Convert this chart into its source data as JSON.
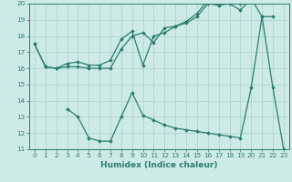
{
  "line1_x": [
    0,
    1,
    2,
    3,
    4,
    5,
    6,
    7,
    8,
    9,
    10,
    11,
    12,
    13,
    14,
    15,
    16,
    17,
    18,
    19,
    20,
    21,
    22
  ],
  "line1_y": [
    17.5,
    16.1,
    16.0,
    16.1,
    16.1,
    16.0,
    16.0,
    16.0,
    17.2,
    18.0,
    18.2,
    17.6,
    18.5,
    18.6,
    18.8,
    19.2,
    20.0,
    19.9,
    20.0,
    19.6,
    20.3,
    19.2,
    19.2
  ],
  "line2_x": [
    0,
    1,
    2,
    3,
    4,
    5,
    6,
    7,
    8,
    9,
    10,
    11,
    12,
    13,
    14,
    15,
    16,
    17,
    18,
    19,
    20
  ],
  "line2_y": [
    17.5,
    16.1,
    16.0,
    16.3,
    16.4,
    16.2,
    16.2,
    16.5,
    17.8,
    18.3,
    16.2,
    18.0,
    18.2,
    18.6,
    18.9,
    19.4,
    20.2,
    20.5,
    20.6,
    20.0,
    20.6
  ],
  "line3_x": [
    3,
    4,
    5,
    6,
    7,
    8,
    9,
    10,
    11,
    12,
    13,
    14,
    15,
    16,
    17,
    18,
    19,
    20,
    21,
    22,
    23
  ],
  "line3_y": [
    13.5,
    13.0,
    11.7,
    11.5,
    11.5,
    13.0,
    14.5,
    13.1,
    12.8,
    12.5,
    12.3,
    12.2,
    12.1,
    12.0,
    11.9,
    11.8,
    11.7,
    14.8,
    19.2,
    14.8,
    11.0
  ],
  "color": "#2a7d6e",
  "bg_color": "#ceeae6",
  "grid_color": "#aed4cf",
  "xlabel": "Humidex (Indice chaleur)",
  "ylim": [
    11,
    20
  ],
  "xlim": [
    -0.5,
    23.5
  ],
  "yticks": [
    11,
    12,
    13,
    14,
    15,
    16,
    17,
    18,
    19,
    20
  ],
  "xticks": [
    0,
    1,
    2,
    3,
    4,
    5,
    6,
    7,
    8,
    9,
    10,
    11,
    12,
    13,
    14,
    15,
    16,
    17,
    18,
    19,
    20,
    21,
    22,
    23
  ],
  "xlabel_fontsize": 6.5,
  "tick_fontsize": 5.2,
  "marker": "D",
  "marker_size": 1.8,
  "linewidth": 0.9
}
